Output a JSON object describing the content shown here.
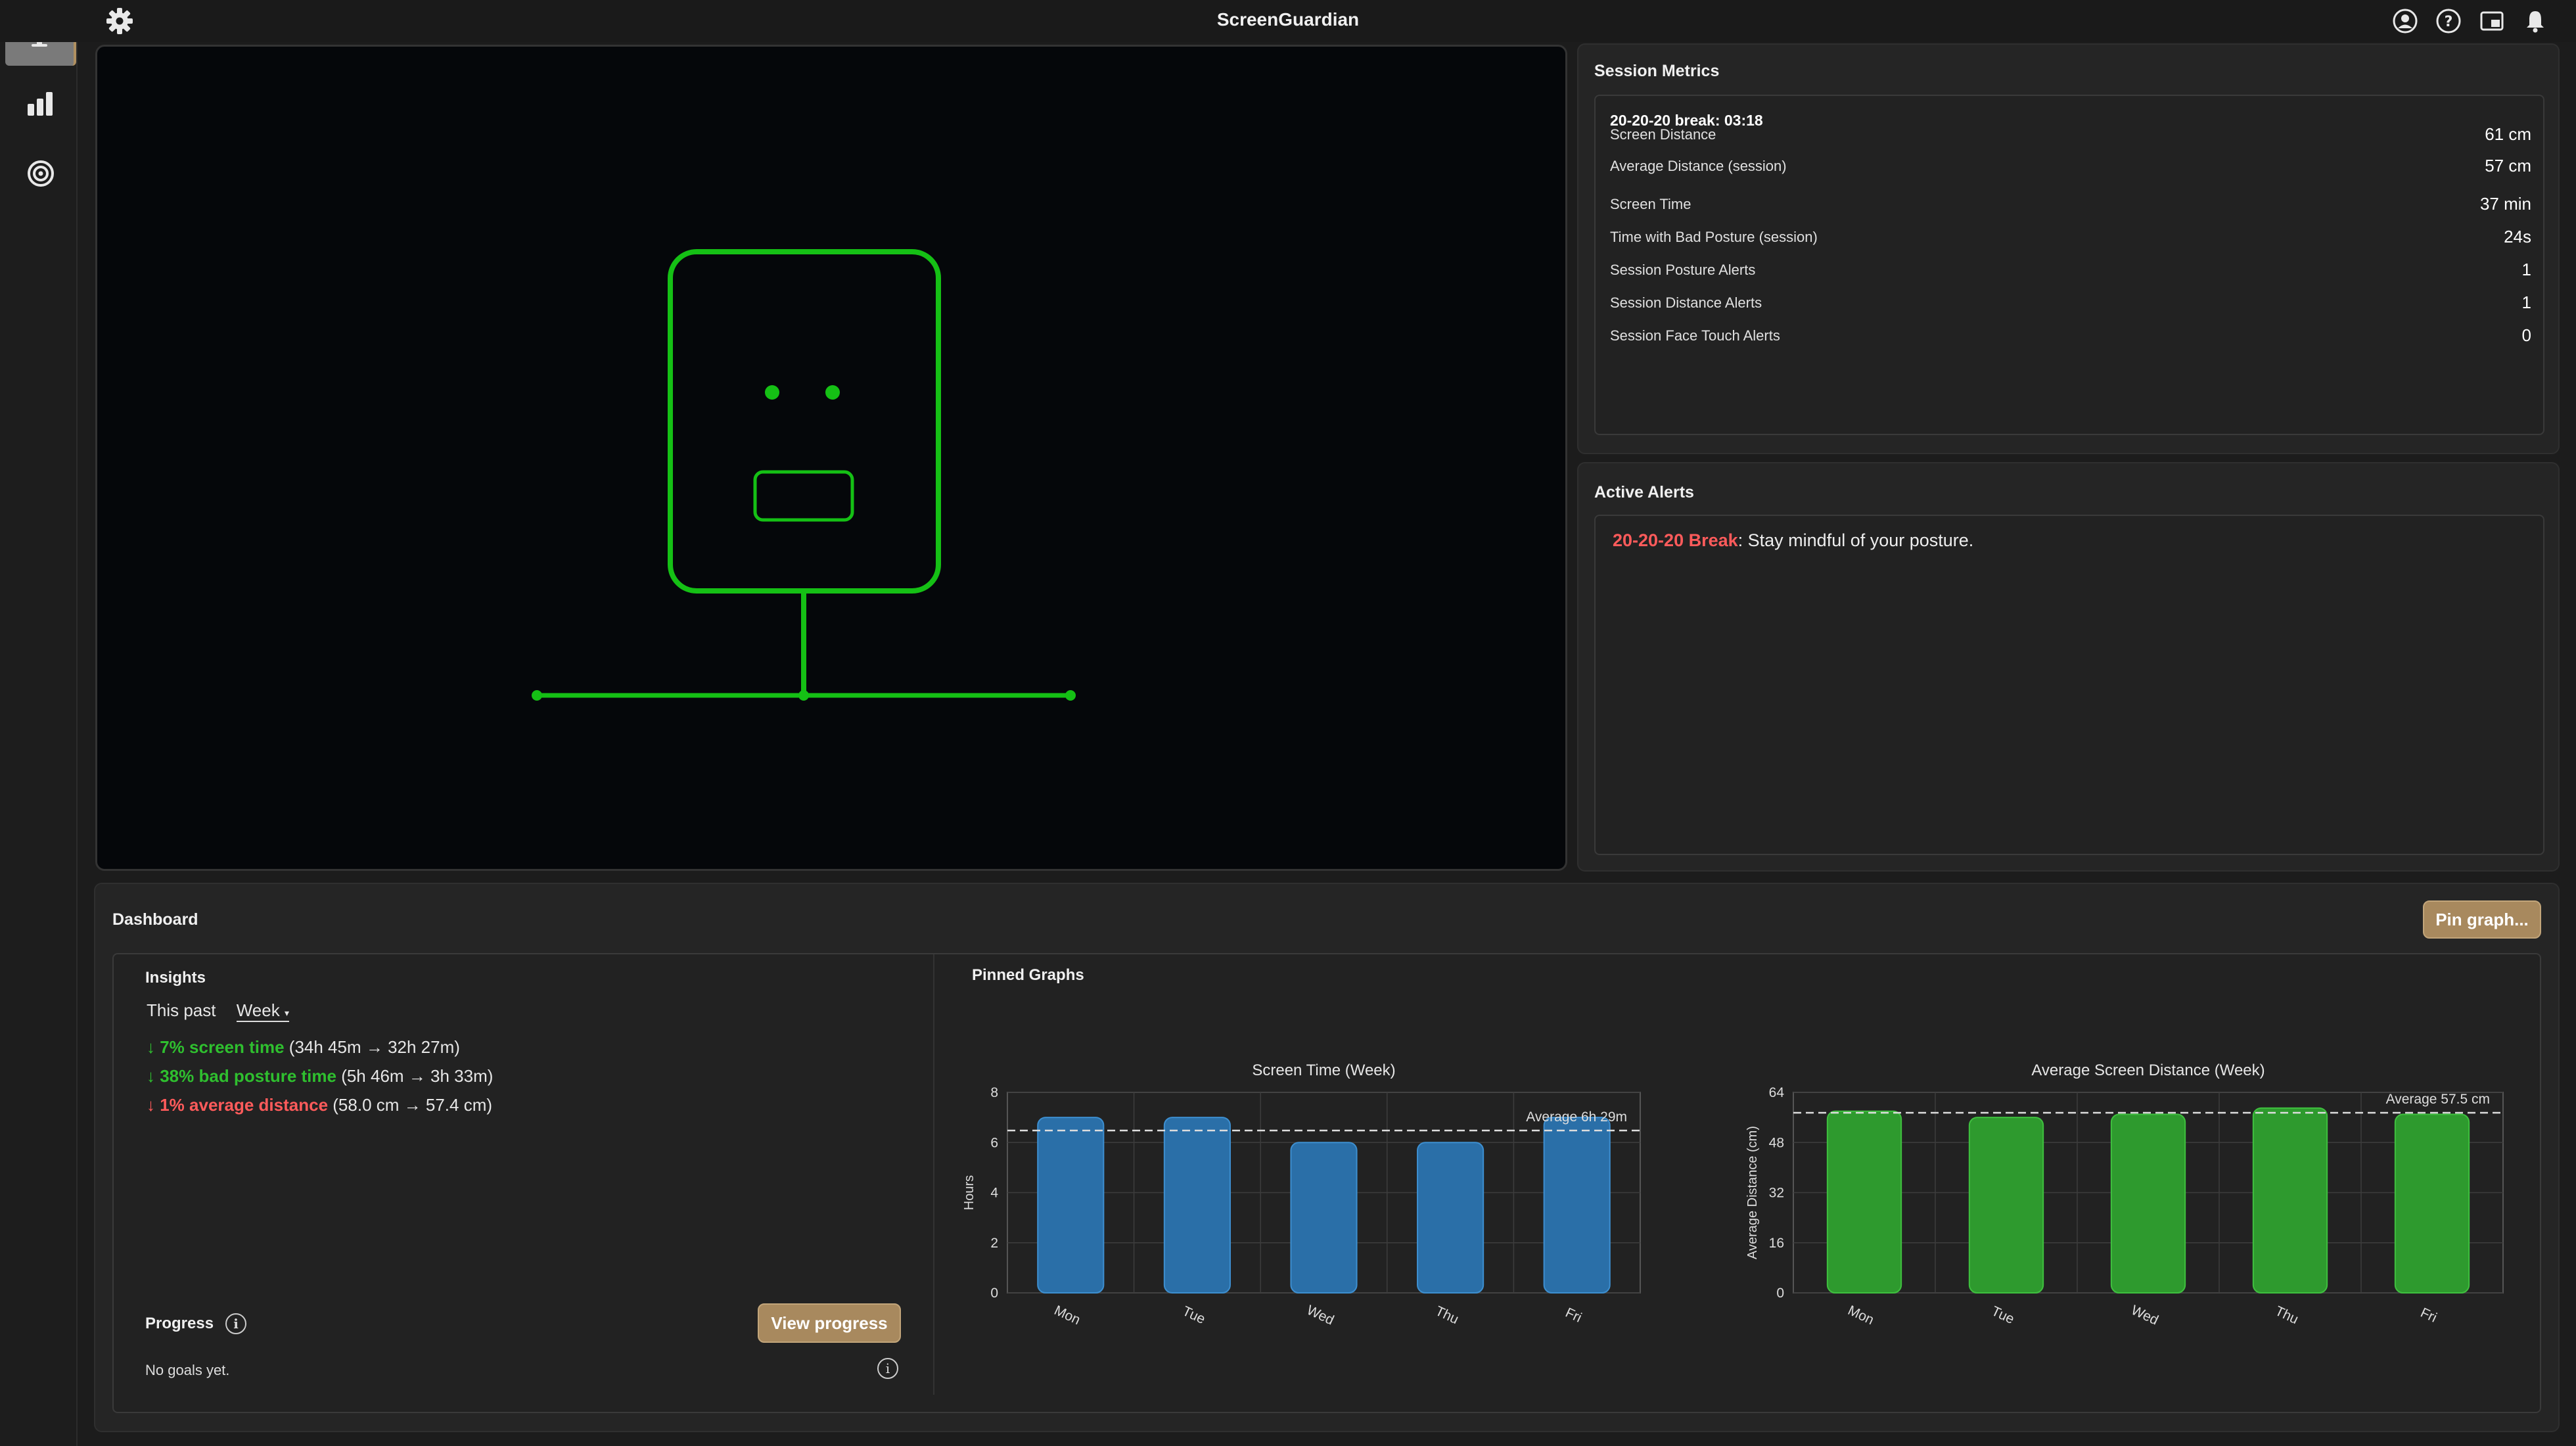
{
  "app": {
    "title": "ScreenGuardian"
  },
  "sidebar": {
    "items": [
      {
        "name": "monitor-icon",
        "active": true
      },
      {
        "name": "bar-chart-icon",
        "active": false
      },
      {
        "name": "target-icon",
        "active": false
      }
    ]
  },
  "topbar_icons": [
    "account-icon",
    "help-icon",
    "picture-in-picture-icon",
    "bell-icon"
  ],
  "session_metrics": {
    "title": "Session Metrics",
    "break_timer": "20-20-20 break: 03:18",
    "rows": [
      {
        "label": "Screen Distance",
        "value": "61 cm"
      },
      {
        "label": "Average Distance (session)",
        "value": "57 cm"
      },
      {
        "label": "Screen Time",
        "value": "37 min"
      },
      {
        "label": "Time with Bad Posture (session)",
        "value": "24s"
      },
      {
        "label": "Session Posture Alerts",
        "value": "1"
      },
      {
        "label": "Session Distance Alerts",
        "value": "1"
      },
      {
        "label": "Session Face Touch Alerts",
        "value": "0"
      }
    ]
  },
  "active_alerts": {
    "title": "Active Alerts",
    "alert_name": "20-20-20 Break",
    "alert_message": ": Stay mindful of your posture."
  },
  "dashboard": {
    "title": "Dashboard",
    "pin_button": "Pin graph...",
    "insights": {
      "title": "Insights",
      "period_prefix": "This past",
      "period_value": "Week",
      "lines": [
        {
          "highlight": "↓ 7% screen time",
          "detail": " (34h 45m → 32h 27m)",
          "color": "#2fbf2f"
        },
        {
          "highlight": "↓ 38% bad posture time",
          "detail": " (5h 46m → 3h 33m)",
          "color": "#2fbf2f"
        },
        {
          "highlight": "↓ 1% average distance",
          "detail": " (58.0 cm → 57.4 cm)",
          "color": "#ff5b5b"
        }
      ]
    },
    "progress": {
      "title": "Progress",
      "button": "View progress",
      "empty": "No goals yet."
    },
    "pinned_title": "Pinned Graphs"
  },
  "chart_data": [
    {
      "type": "bar",
      "title": "Screen Time (Week)",
      "categories": [
        "Mon",
        "Tue",
        "Wed",
        "Thu",
        "Fri"
      ],
      "values": [
        7.0,
        7.0,
        6.0,
        6.0,
        7.0
      ],
      "ylabel": "Hours",
      "ylim": [
        0,
        8
      ],
      "yticks": [
        0,
        2,
        4,
        6,
        8
      ],
      "average": 6.48,
      "average_label": "Average 6h 29m",
      "color": "#2a6fa8",
      "grid": true
    },
    {
      "type": "bar",
      "title": "Average Screen Distance (Week)",
      "categories": [
        "Mon",
        "Tue",
        "Wed",
        "Thu",
        "Fri"
      ],
      "values": [
        58,
        56,
        57,
        59,
        57
      ],
      "ylabel": "Average Distance (cm)",
      "ylim": [
        0,
        64
      ],
      "yticks": [
        0,
        16,
        32,
        48,
        64
      ],
      "average": 57.5,
      "average_label": "Average 57.5 cm",
      "color": "#2e9a2e",
      "grid": true
    }
  ]
}
